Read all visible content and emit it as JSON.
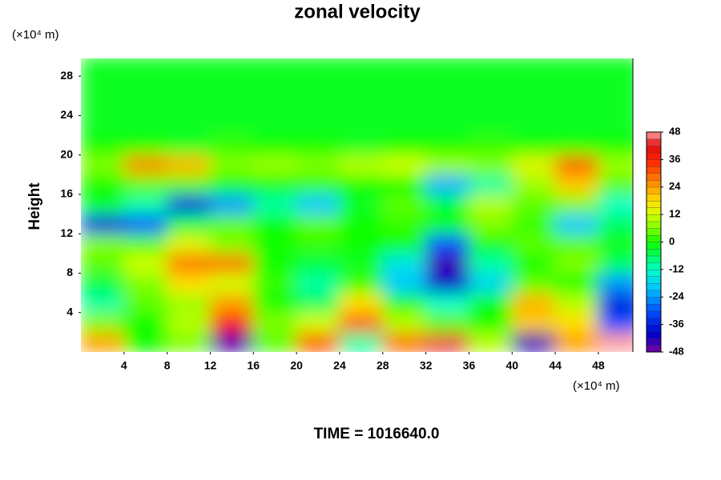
{
  "chart_data": {
    "type": "contour",
    "title": "zonal velocity",
    "ylabel": "Height",
    "yunit": "(×10⁴ m)",
    "xunit": "(×10⁴ m)",
    "footer": "TIME = 1016640.0",
    "x": [
      2,
      6,
      10,
      14,
      18,
      22,
      26,
      30,
      34,
      38,
      42,
      46,
      50
    ],
    "y": [
      1,
      3,
      5,
      7,
      9,
      11,
      13,
      15,
      17,
      19,
      21,
      23,
      25,
      27,
      29
    ],
    "z": [
      [
        24,
        0,
        6,
        -46,
        4,
        30,
        -10,
        28,
        44,
        10,
        -44,
        24,
        48
      ],
      [
        6,
        0,
        10,
        36,
        6,
        12,
        30,
        10,
        4,
        0,
        20,
        18,
        -30
      ],
      [
        -10,
        4,
        8,
        24,
        0,
        -6,
        18,
        0,
        -12,
        0,
        22,
        10,
        -36
      ],
      [
        -4,
        6,
        18,
        12,
        2,
        -10,
        2,
        -20,
        -40,
        -18,
        4,
        0,
        -24
      ],
      [
        4,
        12,
        28,
        28,
        0,
        -4,
        -2,
        -16,
        -44,
        -10,
        0,
        6,
        -6
      ],
      [
        6,
        4,
        14,
        6,
        0,
        2,
        0,
        0,
        -30,
        0,
        4,
        4,
        0
      ],
      [
        -36,
        -30,
        -4,
        4,
        0,
        4,
        0,
        2,
        0,
        6,
        2,
        -20,
        -6
      ],
      [
        -2,
        -10,
        -36,
        -24,
        -10,
        -20,
        -2,
        4,
        -4,
        10,
        4,
        6,
        -12
      ],
      [
        0,
        4,
        4,
        0,
        0,
        2,
        0,
        0,
        -22,
        -10,
        8,
        20,
        4
      ],
      [
        6,
        26,
        22,
        6,
        8,
        6,
        10,
        12,
        8,
        6,
        14,
        30,
        8
      ],
      [
        0,
        0,
        -2,
        2,
        0,
        0,
        -2,
        0,
        0,
        2,
        0,
        0,
        0
      ],
      [
        -2,
        -2,
        -2,
        -2,
        -2,
        -2,
        -2,
        -2,
        -2,
        -2,
        -2,
        -2,
        -2
      ],
      [
        -2,
        -2,
        -2,
        -2,
        -2,
        -2,
        -2,
        -2,
        -2,
        -2,
        -2,
        -2,
        -2
      ],
      [
        -2,
        -2,
        -2,
        -2,
        -2,
        -2,
        -2,
        -2,
        -2,
        -2,
        -2,
        -2,
        -2
      ],
      [
        -2,
        -2,
        -2,
        -2,
        -2,
        -2,
        -2,
        -2,
        -2,
        -2,
        -2,
        -2,
        -2
      ]
    ],
    "xlim": [
      0,
      51.2
    ],
    "ylim": [
      0,
      29.8
    ],
    "xticks": [
      4,
      8,
      12,
      16,
      20,
      24,
      28,
      32,
      36,
      40,
      44,
      48
    ],
    "yticks": [
      4,
      8,
      12,
      16,
      20,
      24,
      28
    ],
    "cbticks": [
      -48,
      -36,
      -24,
      -12,
      0,
      12,
      24,
      36,
      48
    ],
    "colorscale": [
      [
        -48,
        "#7a00a0"
      ],
      [
        -40,
        "#0000c8"
      ],
      [
        -30,
        "#0050ff"
      ],
      [
        -20,
        "#00c8ff"
      ],
      [
        -12,
        "#00ffc8"
      ],
      [
        -6,
        "#00ff60"
      ],
      [
        0,
        "#10ff00"
      ],
      [
        6,
        "#80ff00"
      ],
      [
        12,
        "#d0ff00"
      ],
      [
        18,
        "#ffe000"
      ],
      [
        24,
        "#ffa000"
      ],
      [
        30,
        "#ff6000"
      ],
      [
        36,
        "#ff2000"
      ],
      [
        42,
        "#e01010"
      ],
      [
        48,
        "#ffa0a0"
      ]
    ]
  }
}
